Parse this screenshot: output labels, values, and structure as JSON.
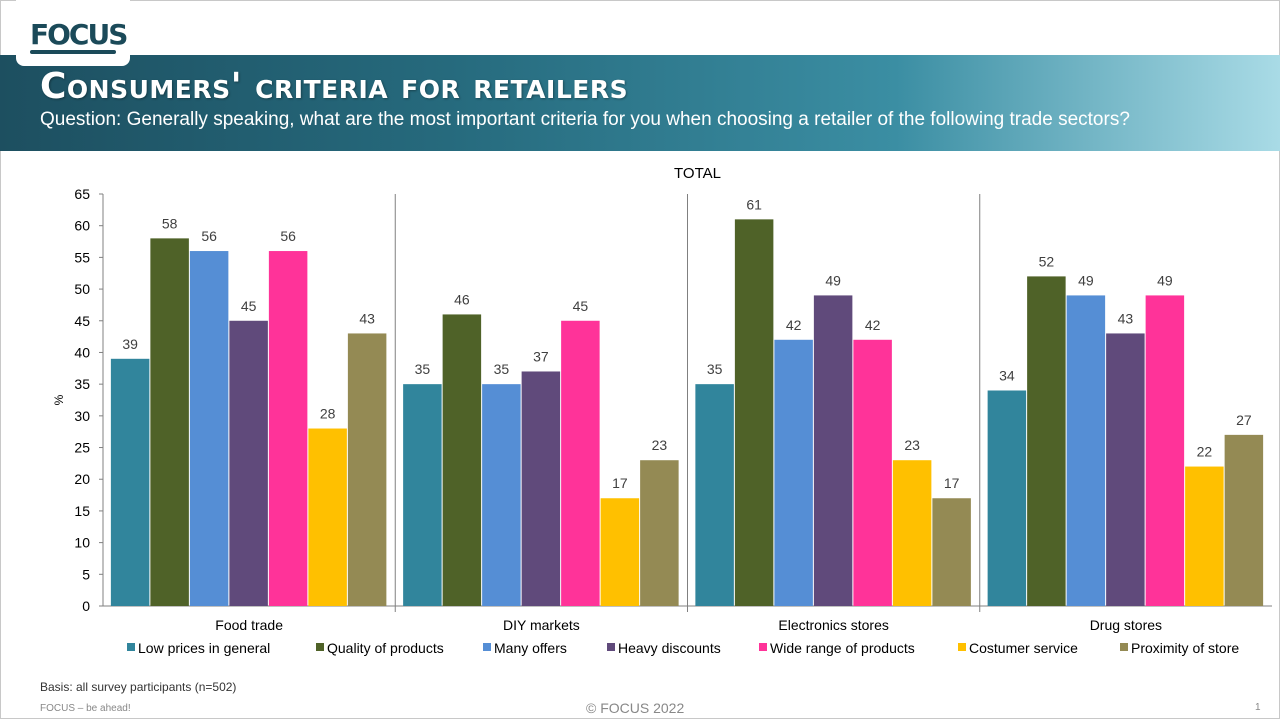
{
  "header": {
    "logo_text": "FOCUS",
    "title": "Consumers' criteria for retailers",
    "question": "Question: Generally speaking, what are the most important criteria for you when choosing a retailer of the following trade sectors?"
  },
  "footer": {
    "basis": "Basis: all survey participants (n=502)",
    "tagline": "FOCUS – be ahead!",
    "copyright": "© FOCUS 2022",
    "page_number": "1"
  },
  "chart_data": {
    "type": "bar",
    "title": "TOTAL",
    "xlabel": "",
    "ylabel": "%",
    "ylim": [
      0,
      65
    ],
    "yticks": [
      0,
      5,
      10,
      15,
      20,
      25,
      30,
      35,
      40,
      45,
      50,
      55,
      60,
      65
    ],
    "grid": false,
    "legend_position": "bottom",
    "categories": [
      "Food trade",
      "DIY markets",
      "Electronics stores",
      "Drug stores"
    ],
    "series": [
      {
        "name": "Low prices in general",
        "color": "#31859c",
        "values": [
          39,
          35,
          35,
          34
        ]
      },
      {
        "name": "Quality of products",
        "color": "#4f6228",
        "values": [
          58,
          46,
          61,
          52
        ]
      },
      {
        "name": "Many offers",
        "color": "#558ed5",
        "values": [
          56,
          35,
          42,
          49
        ]
      },
      {
        "name": "Heavy discounts",
        "color": "#604a7b",
        "values": [
          45,
          37,
          49,
          43
        ]
      },
      {
        "name": "Wide range of products",
        "color": "#ff3399",
        "values": [
          56,
          45,
          42,
          49
        ]
      },
      {
        "name": "Costumer service",
        "color": "#ffc000",
        "values": [
          28,
          17,
          23,
          22
        ]
      },
      {
        "name": "Proximity of store",
        "color": "#948a54",
        "values": [
          43,
          23,
          17,
          27
        ]
      }
    ]
  }
}
